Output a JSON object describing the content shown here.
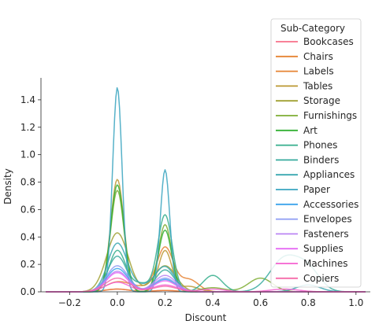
{
  "chart_data": {
    "type": "line",
    "title": "",
    "xlabel": "Discount",
    "ylabel": "Density",
    "xlim": [
      -0.32,
      1.06
    ],
    "ylim": [
      0,
      1.56
    ],
    "xticks": [
      -0.2,
      0.0,
      0.2,
      0.4,
      0.6,
      0.8,
      1.0
    ],
    "yticks": [
      0.0,
      0.2,
      0.4,
      0.6,
      0.8,
      1.0,
      1.2,
      1.4
    ],
    "xtick_labels": [
      "−0.2",
      "0.0",
      "0.2",
      "0.4",
      "0.6",
      "0.8",
      "1.0"
    ],
    "ytick_labels": [
      "0.0",
      "0.2",
      "0.4",
      "0.6",
      "0.8",
      "1.0",
      "1.2",
      "1.4"
    ],
    "grid": false,
    "legend": {
      "title": "Sub-Category",
      "placement": "upper-right"
    },
    "x_range": [
      -0.3,
      1.04
    ],
    "series": [
      {
        "name": "Bookcases",
        "color": "#f77189",
        "peaks": [
          [
            0.0,
            0.02,
            0.05
          ],
          [
            0.2,
            0.01,
            0.05
          ]
        ]
      },
      {
        "name": "Chairs",
        "color": "#e68332",
        "peaks": [
          [
            0.0,
            0.07,
            0.05
          ],
          [
            0.2,
            0.32,
            0.035
          ],
          [
            0.1,
            0.03,
            0.05
          ],
          [
            0.3,
            0.09,
            0.04
          ]
        ]
      },
      {
        "name": "Labels",
        "color": "#e68332",
        "peaks": [
          [
            0.0,
            0.02,
            0.05
          ],
          [
            0.2,
            0.01,
            0.05
          ]
        ]
      },
      {
        "name": "Tables",
        "color": "#bb9832",
        "peaks": [
          [
            0.0,
            0.82,
            0.028
          ],
          [
            0.2,
            0.3,
            0.028
          ],
          [
            0.3,
            0.04,
            0.04
          ]
        ]
      },
      {
        "name": "Storage",
        "color": "#a0a032",
        "peaks": [
          [
            0.0,
            0.43,
            0.045
          ],
          [
            0.2,
            0.19,
            0.045
          ]
        ]
      },
      {
        "name": "Furnishings",
        "color": "#7ead32",
        "peaks": [
          [
            0.0,
            0.74,
            0.028
          ],
          [
            0.2,
            0.49,
            0.028
          ],
          [
            0.6,
            0.1,
            0.05
          ],
          [
            0.4,
            0.03,
            0.05
          ]
        ]
      },
      {
        "name": "Art",
        "color": "#33b034",
        "peaks": [
          [
            0.0,
            0.78,
            0.028
          ],
          [
            0.2,
            0.45,
            0.028
          ]
        ]
      },
      {
        "name": "Phones",
        "color": "#35ae8c",
        "peaks": [
          [
            0.0,
            0.3,
            0.035
          ],
          [
            0.2,
            0.56,
            0.03
          ],
          [
            0.1,
            0.06,
            0.04
          ],
          [
            0.4,
            0.12,
            0.04
          ]
        ]
      },
      {
        "name": "Binders",
        "color": "#37aa9e",
        "peaks": [
          [
            0.0,
            0.26,
            0.04
          ],
          [
            0.2,
            0.16,
            0.04
          ],
          [
            0.7,
            0.24,
            0.06
          ],
          [
            0.8,
            0.15,
            0.05
          ]
        ]
      },
      {
        "name": "Appliances",
        "color": "#39a7b1",
        "peaks": [
          [
            0.0,
            0.35,
            0.04
          ],
          [
            0.2,
            0.18,
            0.04
          ],
          [
            0.1,
            0.04,
            0.05
          ],
          [
            0.8,
            0.05,
            0.05
          ]
        ]
      },
      {
        "name": "Paper",
        "color": "#3aa5c0",
        "peaks": [
          [
            0.0,
            1.49,
            0.02
          ],
          [
            0.2,
            0.89,
            0.02
          ]
        ]
      },
      {
        "name": "Accessories",
        "color": "#3ba3ec",
        "peaks": [
          [
            0.0,
            0.17,
            0.045
          ],
          [
            0.2,
            0.09,
            0.045
          ]
        ]
      },
      {
        "name": "Envelopes",
        "color": "#8e9bf3",
        "peaks": [
          [
            0.0,
            0.19,
            0.045
          ],
          [
            0.2,
            0.1,
            0.045
          ]
        ]
      },
      {
        "name": "Fasteners",
        "color": "#bb86f4",
        "peaks": [
          [
            0.0,
            0.15,
            0.045
          ],
          [
            0.2,
            0.12,
            0.045
          ]
        ]
      },
      {
        "name": "Supplies",
        "color": "#e66bf4",
        "peaks": [
          [
            0.0,
            0.14,
            0.045
          ],
          [
            0.2,
            0.08,
            0.045
          ]
        ]
      },
      {
        "name": "Machines",
        "color": "#f560d0",
        "peaks": [
          [
            0.0,
            0.07,
            0.05
          ],
          [
            0.2,
            0.05,
            0.05
          ],
          [
            0.4,
            0.02,
            0.05
          ],
          [
            0.7,
            0.02,
            0.06
          ]
        ]
      },
      {
        "name": "Copiers",
        "color": "#f66ba9",
        "peaks": [
          [
            0.0,
            0.1,
            0.05
          ],
          [
            0.2,
            0.04,
            0.05
          ]
        ]
      }
    ]
  }
}
